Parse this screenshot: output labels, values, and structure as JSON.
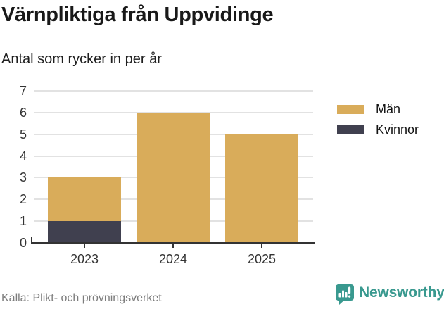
{
  "chart_data": {
    "type": "bar",
    "stacked": true,
    "title": "Värnpliktiga från Uppvidinge",
    "subtitle": "Antal som rycker in per år",
    "categories": [
      "2023",
      "2024",
      "2025"
    ],
    "series": [
      {
        "name": "Män",
        "color": "#D9AC5A",
        "values": [
          2,
          6,
          5
        ]
      },
      {
        "name": "Kvinnor",
        "color": "#40404F",
        "values": [
          1,
          0,
          0
        ]
      }
    ],
    "stack_order_bottom_to_top": [
      "Kvinnor",
      "Män"
    ],
    "totals": [
      3,
      6,
      5
    ],
    "ylim": [
      0,
      7
    ],
    "yticks": [
      0,
      1,
      2,
      3,
      4,
      5,
      6,
      7
    ],
    "grid": true,
    "legend_position": "right"
  },
  "footer": {
    "source": "Källa: Plikt- och prövningsverket",
    "brand": "Newsworthy"
  },
  "colors": {
    "bar_man": "#D9AC5A",
    "bar_kvinnor": "#40404F",
    "axis": "#333333",
    "gridline": "#e2e2e2",
    "title_text": "#191919",
    "axis_text": "#333333",
    "source_text": "#7d7d7d",
    "brand_teal": "#39998F",
    "background": "#ffffff"
  }
}
